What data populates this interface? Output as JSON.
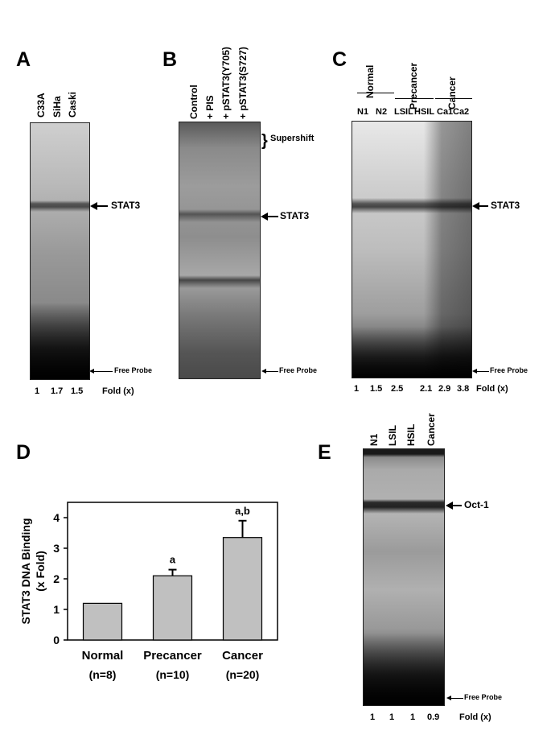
{
  "panels": {
    "A": {
      "letter": "A",
      "lanes": [
        "C33A",
        "SiHa",
        "Caski"
      ],
      "band": "STAT3",
      "free_probe": "Free Probe",
      "folds": [
        "1",
        "1.7",
        "1.5"
      ],
      "fold_label": "Fold (x)"
    },
    "B": {
      "letter": "B",
      "lanes": [
        "Control",
        "+ PIS",
        "+ pSTAT3(Y705)",
        "+ pSTAT3(S727)"
      ],
      "supershift": "Supershift",
      "band": "STAT3",
      "free_probe": "Free Probe"
    },
    "C": {
      "letter": "C",
      "groups": [
        "Normal",
        "Precancer",
        "Cancer"
      ],
      "lanes": [
        "N1",
        "N2",
        "LSIL",
        "HSIL",
        "Ca1",
        "Ca2"
      ],
      "band": "STAT3",
      "free_probe": "Free Probe",
      "folds": [
        "1",
        "1.5",
        "2.5",
        "2.1",
        "2.9",
        "3.8"
      ],
      "fold_label": "Fold (x)"
    },
    "D": {
      "letter": "D"
    },
    "E": {
      "letter": "E",
      "lanes": [
        "N1",
        "LSIL",
        "HSIL",
        "Cancer"
      ],
      "band": "Oct-1",
      "free_probe": "Free Probe",
      "folds": [
        "1",
        "1",
        "1",
        "0.9"
      ],
      "fold_label": "Fold (x)"
    }
  },
  "chart_data": {
    "type": "bar",
    "categories": [
      "Normal",
      "Precancer",
      "Cancer"
    ],
    "category_sublabels": [
      "(n=8)",
      "(n=10)",
      "(n=20)"
    ],
    "values": [
      1.2,
      2.1,
      3.35
    ],
    "errors": [
      0,
      0.2,
      0.55
    ],
    "annotations": [
      "",
      "a",
      "a,b"
    ],
    "ylabel_line1": "STAT3 DNA Binding",
    "ylabel_line2": "(x Fold)",
    "ylim": [
      0,
      4.5
    ],
    "yticks": [
      "0",
      "1",
      "2",
      "3",
      "4"
    ],
    "bar_color": "#c0c0c0"
  }
}
